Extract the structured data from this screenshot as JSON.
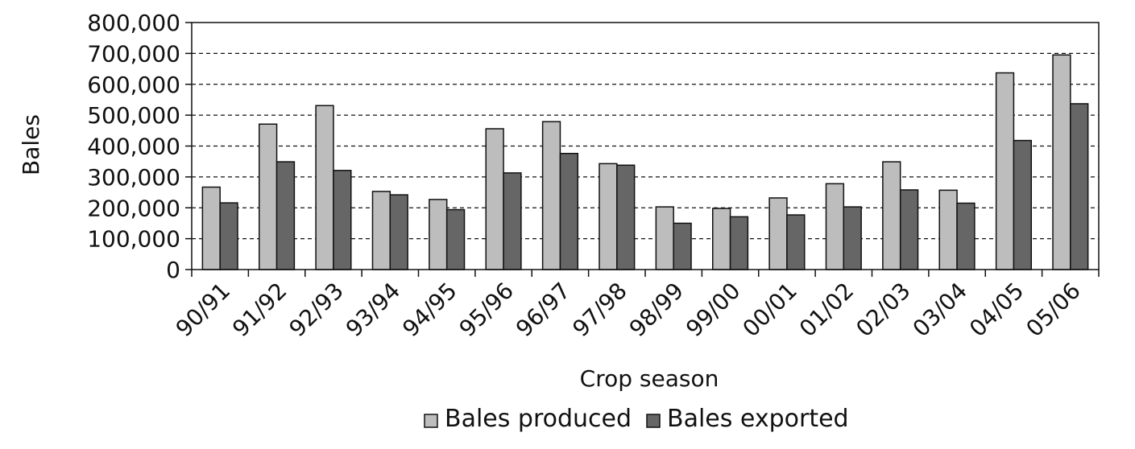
{
  "chart_data": {
    "type": "bar",
    "xlabel": "Crop season",
    "ylabel": "Bales",
    "ylim": [
      0,
      800000
    ],
    "yticks": [
      0,
      100000,
      200000,
      300000,
      400000,
      500000,
      600000,
      700000,
      800000
    ],
    "ytick_labels": [
      "0",
      "100,000",
      "200,000",
      "300,000",
      "400,000",
      "500,000",
      "600,000",
      "700,000",
      "800,000"
    ],
    "grid": "horizontal dashed",
    "legend_position": "bottom",
    "categories": [
      "90/91",
      "91/92",
      "92/93",
      "93/94",
      "94/95",
      "95/96",
      "96/97",
      "97/98",
      "98/99",
      "99/00",
      "00/01",
      "01/02",
      "02/03",
      "03/04",
      "04/05",
      "05/06"
    ],
    "series": [
      {
        "name": "Bales produced",
        "color": "#bdbdbd",
        "values": [
          267000,
          471000,
          531000,
          253000,
          227000,
          456000,
          479000,
          343000,
          203000,
          198000,
          232000,
          278000,
          349000,
          257000,
          637000,
          695000
        ]
      },
      {
        "name": "Bales exported",
        "color": "#666666",
        "values": [
          216000,
          349000,
          321000,
          242000,
          194000,
          313000,
          376000,
          338000,
          150000,
          171000,
          177000,
          203000,
          258000,
          215000,
          418000,
          537000
        ]
      }
    ]
  }
}
